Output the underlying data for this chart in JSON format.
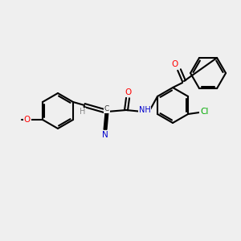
{
  "bg_color": "#efefef",
  "bond_color": "#000000",
  "bond_lw": 1.5,
  "font_size": 7.5,
  "atom_colors": {
    "O": "#ff0000",
    "N": "#0000cc",
    "Cl": "#00aa00",
    "C": "#000000",
    "H": "#888888"
  }
}
